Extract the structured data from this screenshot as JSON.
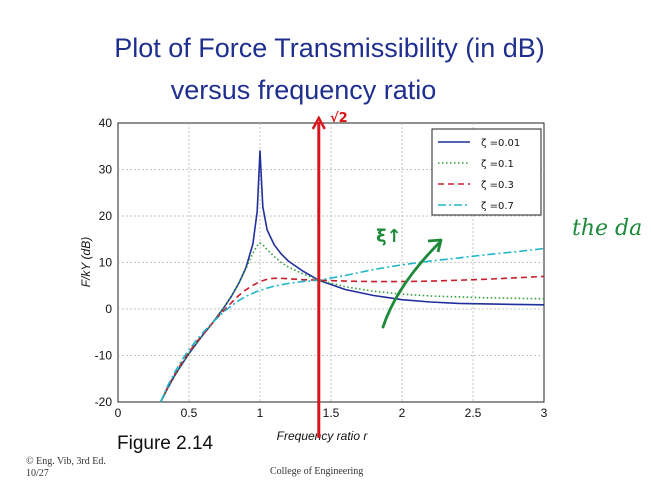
{
  "slide": {
    "title_line1": "Plot of Force Transmissibility (in dB)",
    "title_line2": "versus frequency ratio",
    "figure_label": "Figure 2.14",
    "footer_left_line1": "© Eng. Vib, 3rd Ed.",
    "footer_left_line2": "10/27",
    "footer_center": "College of Engineering"
  },
  "annotations": {
    "vertical_line_label": "√2",
    "vertical_line_x": 1.414,
    "arrow_label": "ξ↑",
    "side_note": "the da",
    "colors": {
      "ink_red": "#d8141c",
      "ink_green": "#1d8a3a"
    }
  },
  "chart_data": {
    "type": "line",
    "xlabel": "Frequency ratio r",
    "ylabel": "F/kY (dB)",
    "xlim": [
      0,
      3
    ],
    "ylim": [
      -20,
      40
    ],
    "xticks": [
      0,
      0.5,
      1,
      1.5,
      2,
      2.5,
      3
    ],
    "xtick_labels": [
      "0",
      "0.5",
      "1",
      "1.5",
      "2",
      "2.5",
      "3"
    ],
    "yticks": [
      -20,
      -10,
      0,
      10,
      20,
      30,
      40
    ],
    "ytick_labels": [
      "-20",
      "-10",
      "0",
      "10",
      "20",
      "30",
      "40"
    ],
    "grid": true,
    "legend_position": "top-right",
    "x": [
      0.3,
      0.35,
      0.4,
      0.45,
      0.5,
      0.55,
      0.6,
      0.65,
      0.7,
      0.75,
      0.8,
      0.85,
      0.9,
      0.95,
      0.98,
      1.0,
      1.02,
      1.05,
      1.1,
      1.15,
      1.2,
      1.3,
      1.414,
      1.6,
      1.8,
      2.0,
      2.2,
      2.4,
      2.6,
      2.8,
      3.0
    ],
    "series": [
      {
        "name": "ζ =0.01",
        "color": "#1f2f9c",
        "dash": "solid",
        "values": [
          -20.0,
          -17.0,
          -14.3,
          -11.9,
          -9.6,
          -7.5,
          -5.5,
          -3.6,
          -1.6,
          0.5,
          2.8,
          5.5,
          8.8,
          14.0,
          21.0,
          34.0,
          22.0,
          17.0,
          13.8,
          11.8,
          10.3,
          8.2,
          6.2,
          4.2,
          2.9,
          2.0,
          1.5,
          1.2,
          1.1,
          1.0,
          0.9
        ]
      },
      {
        "name": "ζ =0.1",
        "color": "#2e9e3a",
        "dash": "dotted",
        "values": [
          -20.0,
          -17.0,
          -14.3,
          -11.9,
          -9.6,
          -7.5,
          -5.5,
          -3.6,
          -1.6,
          0.5,
          2.8,
          5.5,
          8.6,
          12.0,
          13.6,
          14.2,
          13.8,
          12.8,
          11.3,
          10.0,
          9.0,
          7.6,
          6.2,
          4.8,
          3.8,
          3.2,
          2.8,
          2.6,
          2.4,
          2.3,
          2.2
        ]
      },
      {
        "name": "ζ =0.3",
        "color": "#c81e2c",
        "dash": "dashed",
        "values": [
          -20.0,
          -16.8,
          -14.0,
          -11.5,
          -9.3,
          -7.2,
          -5.4,
          -3.6,
          -1.8,
          -0.2,
          1.4,
          2.9,
          4.1,
          5.1,
          5.6,
          5.9,
          6.1,
          6.4,
          6.6,
          6.6,
          6.5,
          6.3,
          6.2,
          6.0,
          5.9,
          5.9,
          6.0,
          6.2,
          6.4,
          6.7,
          7.0
        ]
      },
      {
        "name": "ζ =0.7",
        "color": "#20b7c9",
        "dash": "dashdot",
        "values": [
          -20.0,
          -16.5,
          -13.6,
          -11.0,
          -8.8,
          -6.8,
          -5.0,
          -3.4,
          -1.9,
          -0.5,
          0.7,
          1.8,
          2.7,
          3.4,
          3.8,
          4.0,
          4.2,
          4.5,
          4.9,
          5.2,
          5.5,
          5.9,
          6.2,
          7.2,
          8.5,
          9.5,
          10.3,
          11.0,
          11.7,
          12.3,
          13.0
        ]
      }
    ]
  }
}
